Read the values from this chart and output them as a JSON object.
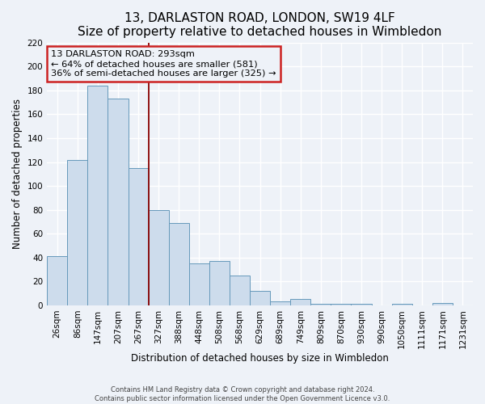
{
  "title": "13, DARLASTON ROAD, LONDON, SW19 4LF",
  "subtitle": "Size of property relative to detached houses in Wimbledon",
  "xlabel": "Distribution of detached houses by size in Wimbledon",
  "ylabel": "Number of detached properties",
  "footer_line1": "Contains HM Land Registry data © Crown copyright and database right 2024.",
  "footer_line2": "Contains public sector information licensed under the Open Government Licence v3.0.",
  "bar_labels": [
    "26sqm",
    "86sqm",
    "147sqm",
    "207sqm",
    "267sqm",
    "327sqm",
    "388sqm",
    "448sqm",
    "508sqm",
    "568sqm",
    "629sqm",
    "689sqm",
    "749sqm",
    "809sqm",
    "870sqm",
    "930sqm",
    "990sqm",
    "1050sqm",
    "1111sqm",
    "1171sqm",
    "1231sqm"
  ],
  "bar_values": [
    41,
    122,
    184,
    173,
    115,
    80,
    69,
    35,
    37,
    25,
    12,
    3,
    5,
    1,
    1,
    1,
    0,
    1,
    0,
    2,
    0
  ],
  "bar_color": "#cddcec",
  "bar_edge_color": "#6699bb",
  "vertical_line_x": 4.5,
  "vertical_line_color": "#880000",
  "annotation_title": "13 DARLASTON ROAD: 293sqm",
  "annotation_line1": "← 64% of detached houses are smaller (581)",
  "annotation_line2": "36% of semi-detached houses are larger (325) →",
  "annotation_box_edge_color": "#cc2222",
  "ylim": [
    0,
    220
  ],
  "yticks": [
    0,
    20,
    40,
    60,
    80,
    100,
    120,
    140,
    160,
    180,
    200,
    220
  ],
  "bg_color": "#eef2f8",
  "grid_color": "#ffffff",
  "title_fontsize": 11,
  "subtitle_fontsize": 9.5,
  "tick_fontsize": 7.5,
  "label_fontsize": 8.5
}
